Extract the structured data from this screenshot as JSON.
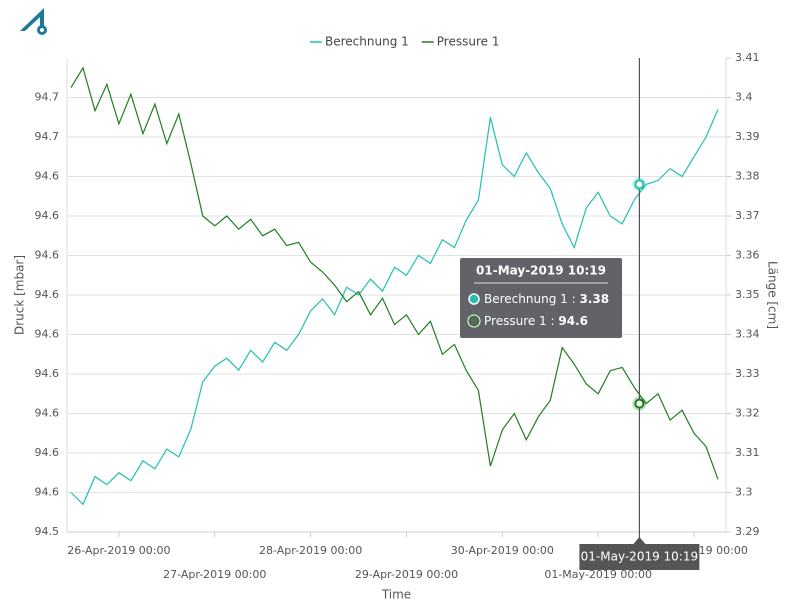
{
  "chart_data": {
    "type": "line",
    "x_label": "Time",
    "y_label": "Druck [mbar]",
    "y2_label": "Länge [cm]",
    "x": [
      "2019-04-25T12:00",
      "2019-04-25T15:00",
      "2019-04-25T18:00",
      "2019-04-25T21:00",
      "2019-04-26T00:00",
      "2019-04-26T03:00",
      "2019-04-26T06:00",
      "2019-04-26T09:00",
      "2019-04-26T12:00",
      "2019-04-26T15:00",
      "2019-04-26T18:00",
      "2019-04-26T21:00",
      "2019-04-27T00:00",
      "2019-04-27T03:00",
      "2019-04-27T06:00",
      "2019-04-27T09:00",
      "2019-04-27T12:00",
      "2019-04-27T15:00",
      "2019-04-27T18:00",
      "2019-04-27T21:00",
      "2019-04-28T00:00",
      "2019-04-28T03:00",
      "2019-04-28T06:00",
      "2019-04-28T09:00",
      "2019-04-28T12:00",
      "2019-04-28T15:00",
      "2019-04-28T18:00",
      "2019-04-28T21:00",
      "2019-04-29T00:00",
      "2019-04-29T03:00",
      "2019-04-29T06:00",
      "2019-04-29T09:00",
      "2019-04-29T12:00",
      "2019-04-29T15:00",
      "2019-04-29T18:00",
      "2019-04-29T21:00",
      "2019-04-30T00:00",
      "2019-04-30T03:00",
      "2019-04-30T06:00",
      "2019-04-30T09:00",
      "2019-04-30T12:00",
      "2019-04-30T15:00",
      "2019-04-30T18:00",
      "2019-04-30T21:00",
      "2019-05-01T00:00",
      "2019-05-01T03:00",
      "2019-05-01T06:00",
      "2019-05-01T09:00",
      "2019-05-01T12:00",
      "2019-05-01T15:00",
      "2019-05-01T18:00",
      "2019-05-01T21:00",
      "2019-05-02T00:00",
      "2019-05-02T03:00",
      "2019-05-02T06:00"
    ],
    "series": [
      {
        "name": "Berechnung 1",
        "color": "#22c0b0",
        "axis": "y2",
        "values": [
          3.3,
          3.297,
          3.304,
          3.302,
          3.305,
          3.303,
          3.308,
          3.306,
          3.311,
          3.309,
          3.316,
          3.328,
          3.332,
          3.334,
          3.331,
          3.336,
          3.333,
          3.338,
          3.336,
          3.34,
          3.346,
          3.349,
          3.345,
          3.352,
          3.35,
          3.354,
          3.351,
          3.357,
          3.355,
          3.36,
          3.358,
          3.364,
          3.362,
          3.369,
          3.374,
          3.395,
          3.383,
          3.38,
          3.386,
          3.381,
          3.377,
          3.368,
          3.362,
          3.372,
          3.376,
          3.37,
          3.368,
          3.374,
          3.378,
          3.379,
          3.382,
          3.38,
          3.385,
          3.39,
          3.397
        ]
      },
      {
        "name": "Pressure 1",
        "color": "#1f7f1f",
        "values": [
          94.675,
          94.681,
          94.668,
          94.676,
          94.664,
          94.673,
          94.661,
          94.67,
          94.658,
          94.667,
          94.652,
          94.636,
          94.633,
          94.636,
          94.632,
          94.635,
          94.63,
          94.632,
          94.627,
          94.628,
          94.622,
          94.619,
          94.615,
          94.61,
          94.613,
          94.606,
          94.611,
          94.603,
          94.606,
          94.6,
          94.604,
          94.594,
          94.597,
          94.589,
          94.583,
          94.56,
          94.571,
          94.576,
          94.568,
          94.575,
          94.58,
          94.596,
          94.591,
          94.585,
          94.582,
          94.589,
          94.59,
          94.584,
          94.579,
          94.582,
          94.574,
          94.577,
          94.57,
          94.566,
          94.556
        ]
      }
    ],
    "xlim": [
      "2019-04-25T11:00",
      "2019-05-02T08:00"
    ],
    "xticks": [
      {
        "value": "2019-04-26T00:00",
        "label": "26-Apr-2019 00:00"
      },
      {
        "value": "2019-04-27T00:00",
        "label": "27-Apr-2019 00:00"
      },
      {
        "value": "2019-04-28T00:00",
        "label": "28-Apr-2019 00:00"
      },
      {
        "value": "2019-04-29T00:00",
        "label": "29-Apr-2019 00:00"
      },
      {
        "value": "2019-04-30T00:00",
        "label": "30-Apr-2019 00:00"
      },
      {
        "value": "2019-05-01T00:00",
        "label": "01-May-2019 00:00"
      },
      {
        "value": "2019-05-02T00:00",
        "label": "02-May-2019 00:00"
      }
    ],
    "ylim": [
      94.54,
      94.684
    ],
    "yticks": [
      {
        "value": 94.54,
        "label": "94.5"
      },
      {
        "value": 94.552,
        "label": "94.6"
      },
      {
        "value": 94.564,
        "label": "94.6"
      },
      {
        "value": 94.576,
        "label": "94.6"
      },
      {
        "value": 94.588,
        "label": "94.6"
      },
      {
        "value": 94.6,
        "label": "94.6"
      },
      {
        "value": 94.612,
        "label": "94.6"
      },
      {
        "value": 94.624,
        "label": "94.6"
      },
      {
        "value": 94.636,
        "label": "94.6"
      },
      {
        "value": 94.648,
        "label": "94.6"
      },
      {
        "value": 94.66,
        "label": "94.7"
      },
      {
        "value": 94.672,
        "label": "94.7"
      }
    ],
    "y2lim": [
      3.29,
      3.41
    ],
    "y2ticks": [
      3.29,
      3.3,
      3.31,
      3.32,
      3.33,
      3.34,
      3.35,
      3.36,
      3.37,
      3.38,
      3.39,
      3.4,
      3.41
    ],
    "grid": true,
    "legend": "top",
    "tooltip": {
      "x": "2019-05-01T10:19",
      "label": "01-May-2019 10:19",
      "separator": " : ",
      "items": [
        {
          "value": 3.378,
          "label": "3.38"
        },
        {
          "value": 94.579,
          "label": "94.6"
        }
      ]
    }
  }
}
